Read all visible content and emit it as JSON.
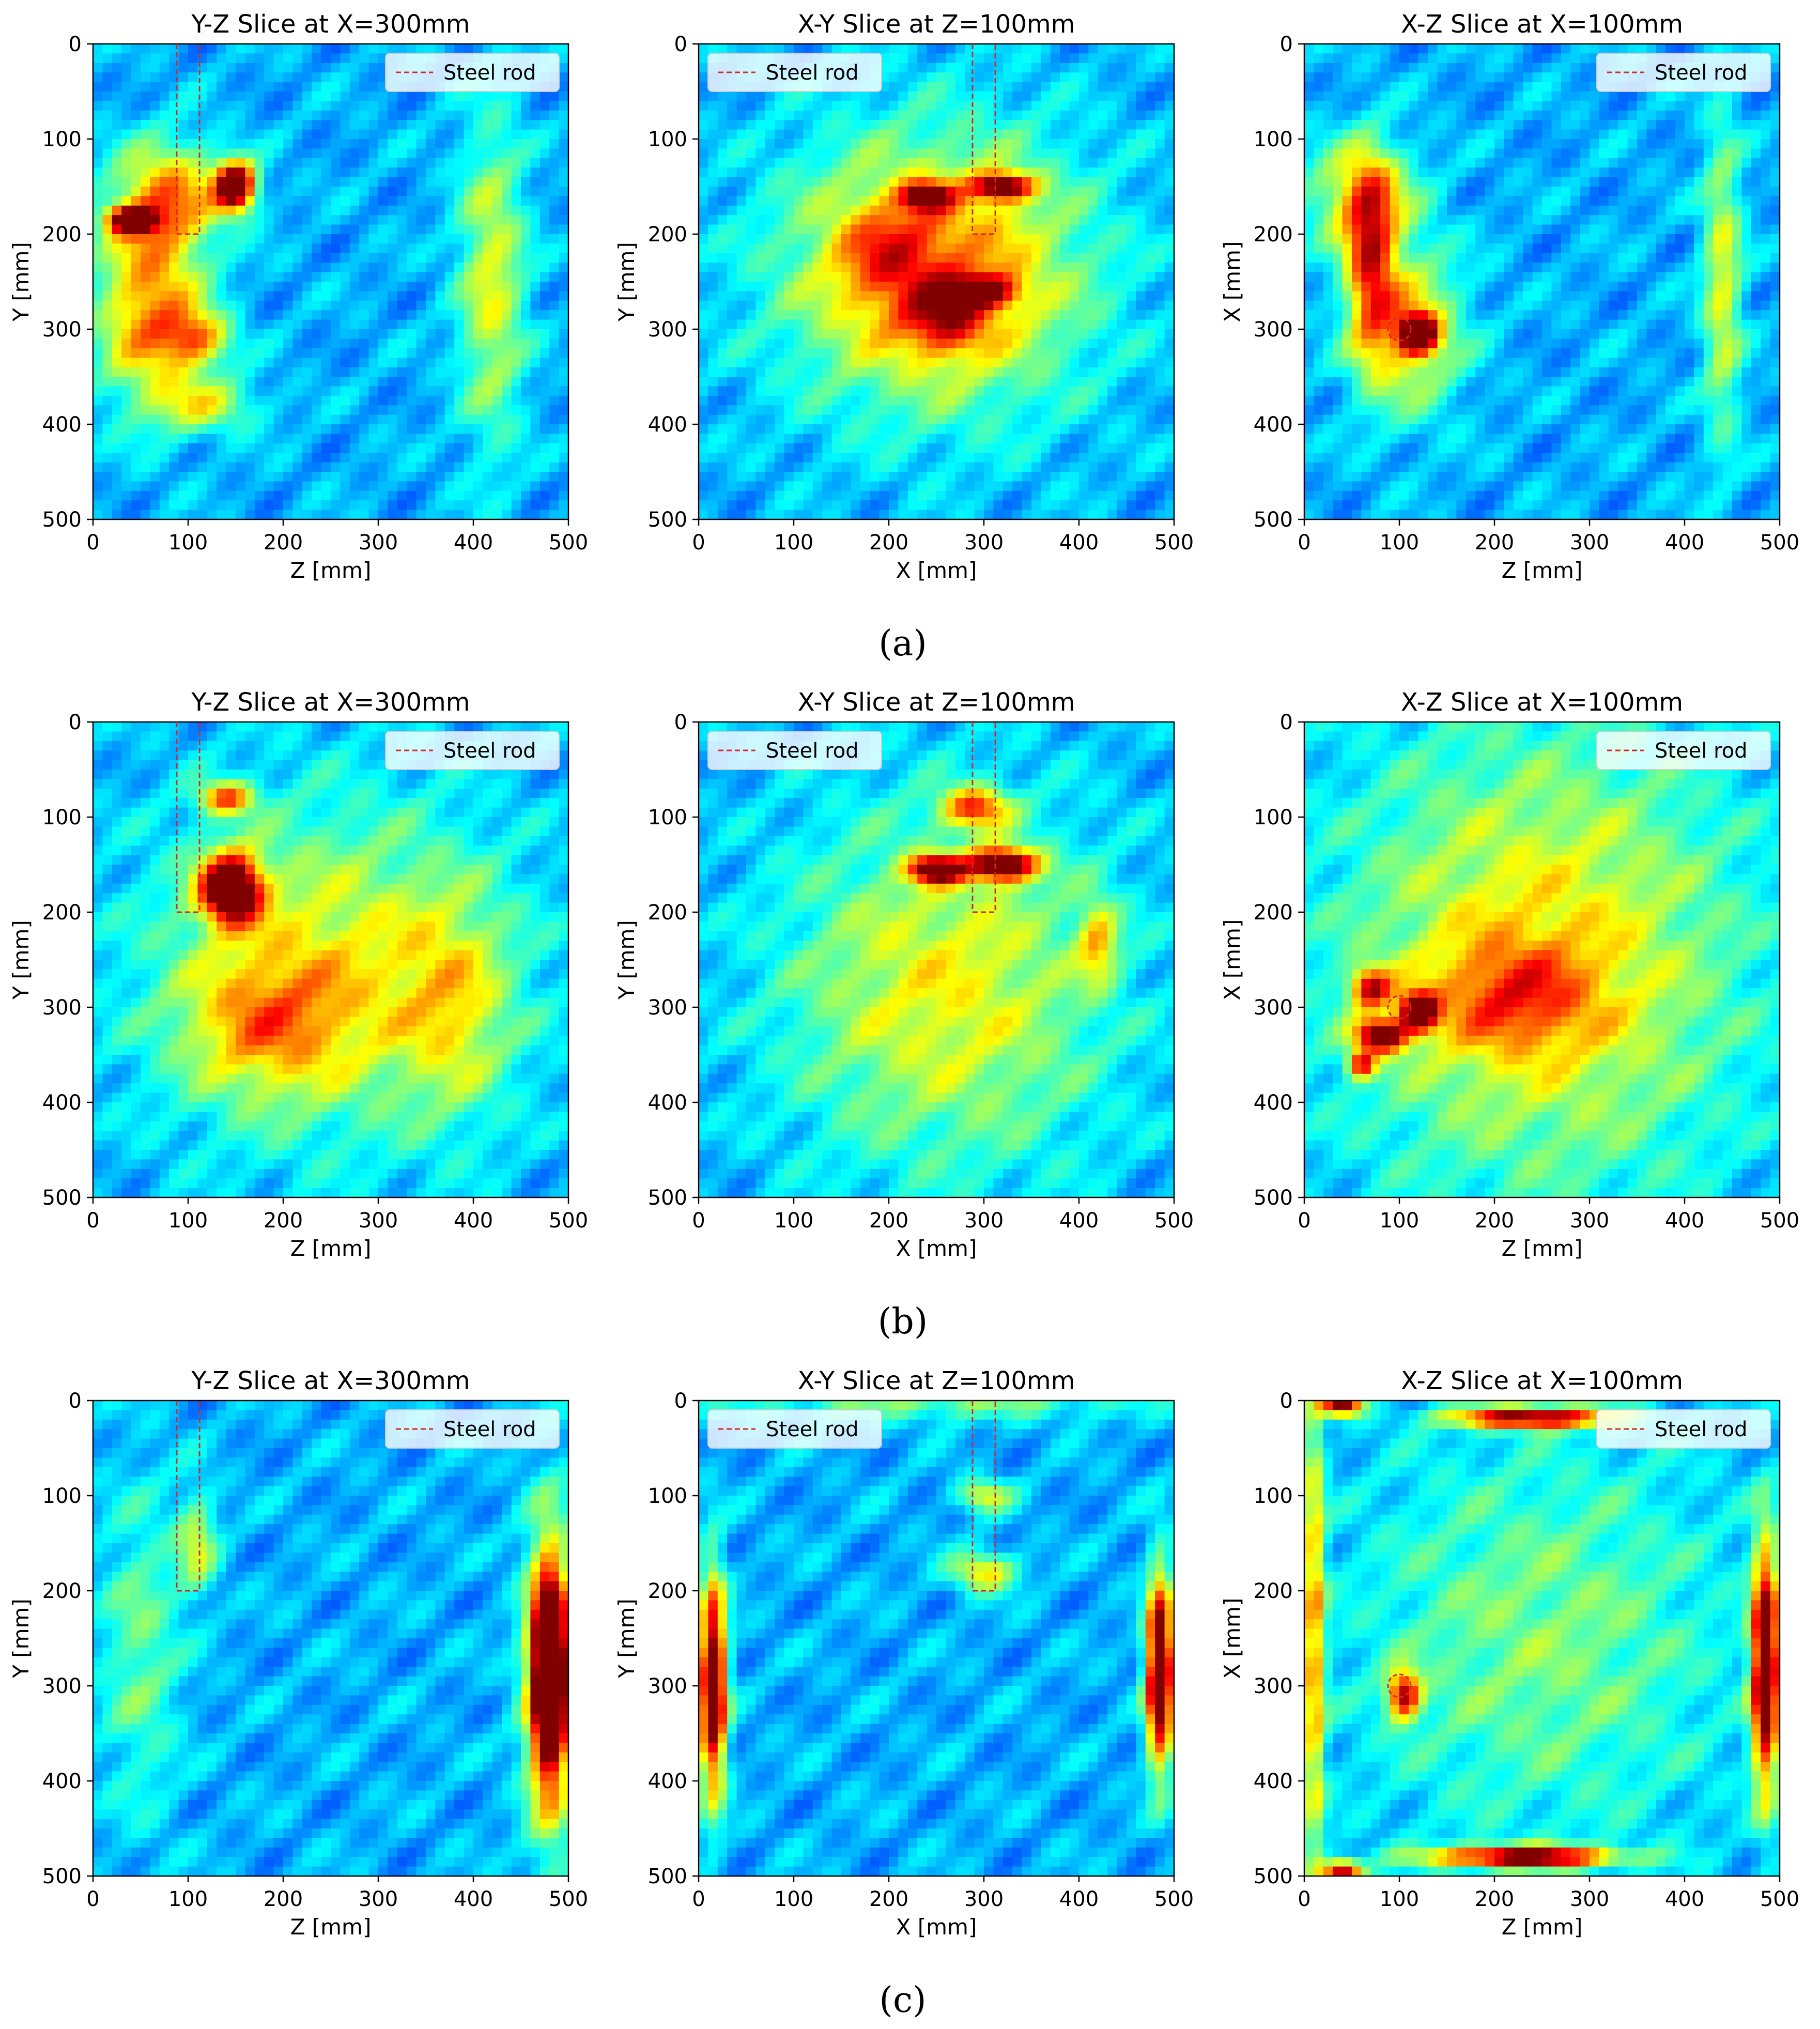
{
  "figure": {
    "captions": [
      "(a)",
      "(b)",
      "(c)"
    ],
    "colormap": "jet",
    "rod_color": "#d62728",
    "legend_label": "Steel rod"
  },
  "chart_data": [
    {
      "row": "(a)",
      "type": "heatmap",
      "title": "Y-Z Slice at X=300mm",
      "xlabel": "Z [mm]",
      "ylabel": "Y [mm]",
      "xlim": [
        0,
        500
      ],
      "ylim": [
        500,
        0
      ],
      "xticks": [
        "0",
        "100",
        "200",
        "300",
        "400",
        "500"
      ],
      "yticks": [
        "0",
        "100",
        "200",
        "300",
        "400",
        "500"
      ],
      "legend": {
        "label": "Steel rod",
        "position": "top-right"
      },
      "steel_rod": {
        "shape": "rect",
        "x": [
          88,
          112
        ],
        "y": [
          0,
          200
        ]
      },
      "hotspots": [
        {
          "x": 150,
          "y": 150,
          "sx": 15,
          "sy": 18,
          "a": 0.85
        },
        {
          "x": 40,
          "y": 185,
          "sx": 18,
          "sy": 10,
          "a": 0.65
        },
        {
          "x": 60,
          "y": 280,
          "sx": 40,
          "sy": 70,
          "a": 0.45
        },
        {
          "x": 110,
          "y": 310,
          "sx": 25,
          "sy": 20,
          "a": 0.35
        },
        {
          "x": 80,
          "y": 160,
          "sx": 40,
          "sy": 40,
          "a": 0.4
        },
        {
          "x": 420,
          "y": 250,
          "sx": 25,
          "sy": 120,
          "a": 0.3
        },
        {
          "x": 120,
          "y": 380,
          "sx": 40,
          "sy": 20,
          "a": 0.25
        }
      ]
    },
    {
      "row": "(a)",
      "type": "heatmap",
      "title": "X-Y Slice at Z=100mm",
      "xlabel": "X [mm]",
      "ylabel": "Y [mm]",
      "xlim": [
        0,
        500
      ],
      "ylim": [
        500,
        0
      ],
      "xticks": [
        "0",
        "100",
        "200",
        "300",
        "400",
        "500"
      ],
      "yticks": [
        "0",
        "100",
        "200",
        "300",
        "400",
        "500"
      ],
      "legend": {
        "label": "Steel rod",
        "position": "top-left"
      },
      "steel_rod": {
        "shape": "rect",
        "x": [
          288,
          312
        ],
        "y": [
          0,
          200
        ]
      },
      "hotspots": [
        {
          "x": 250,
          "y": 240,
          "sx": 110,
          "sy": 100,
          "a": 0.45
        },
        {
          "x": 240,
          "y": 160,
          "sx": 18,
          "sy": 10,
          "a": 0.55
        },
        {
          "x": 320,
          "y": 150,
          "sx": 22,
          "sy": 10,
          "a": 0.65
        },
        {
          "x": 300,
          "y": 260,
          "sx": 25,
          "sy": 12,
          "a": 0.45
        },
        {
          "x": 260,
          "y": 290,
          "sx": 30,
          "sy": 25,
          "a": 0.3
        },
        {
          "x": 200,
          "y": 220,
          "sx": 40,
          "sy": 40,
          "a": 0.2
        }
      ]
    },
    {
      "row": "(a)",
      "type": "heatmap",
      "title": "X-Z Slice at X=100mm",
      "xlabel": "Z [mm]",
      "ylabel": "X [mm]",
      "xlim": [
        0,
        500
      ],
      "ylim": [
        500,
        0
      ],
      "xticks": [
        "0",
        "100",
        "200",
        "300",
        "400",
        "500"
      ],
      "yticks": [
        "0",
        "100",
        "200",
        "300",
        "400",
        "500"
      ],
      "legend": {
        "label": "Steel rod",
        "position": "top-right"
      },
      "steel_rod": {
        "shape": "circle",
        "cx": 100,
        "cy": 300,
        "r": 12
      },
      "hotspots": [
        {
          "x": 120,
          "y": 305,
          "sx": 14,
          "sy": 14,
          "a": 0.75
        },
        {
          "x": 70,
          "y": 230,
          "sx": 18,
          "sy": 70,
          "a": 0.45
        },
        {
          "x": 60,
          "y": 160,
          "sx": 40,
          "sy": 40,
          "a": 0.35
        },
        {
          "x": 110,
          "y": 300,
          "sx": 40,
          "sy": 60,
          "a": 0.35
        },
        {
          "x": 440,
          "y": 250,
          "sx": 15,
          "sy": 120,
          "a": 0.3
        }
      ]
    },
    {
      "row": "(b)",
      "type": "heatmap",
      "title": "Y-Z Slice at X=300mm",
      "xlabel": "Z [mm]",
      "ylabel": "Y [mm]",
      "xlim": [
        0,
        500
      ],
      "ylim": [
        500,
        0
      ],
      "xticks": [
        "0",
        "100",
        "200",
        "300",
        "400",
        "500"
      ],
      "yticks": [
        "0",
        "100",
        "200",
        "300",
        "400",
        "500"
      ],
      "legend": {
        "label": "Steel rod",
        "position": "top-right"
      },
      "steel_rod": {
        "shape": "rect",
        "x": [
          88,
          112
        ],
        "y": [
          0,
          200
        ]
      },
      "hotspots": [
        {
          "x": 145,
          "y": 175,
          "sx": 22,
          "sy": 25,
          "a": 0.85
        },
        {
          "x": 140,
          "y": 80,
          "sx": 20,
          "sy": 12,
          "a": 0.45
        },
        {
          "x": 250,
          "y": 260,
          "sx": 130,
          "sy": 120,
          "a": 0.32
        },
        {
          "x": 180,
          "y": 320,
          "sx": 60,
          "sy": 50,
          "a": 0.25
        },
        {
          "x": 380,
          "y": 300,
          "sx": 40,
          "sy": 80,
          "a": 0.2
        }
      ]
    },
    {
      "row": "(b)",
      "type": "heatmap",
      "title": "X-Y Slice at Z=100mm",
      "xlabel": "X [mm]",
      "ylabel": "Y [mm]",
      "xlim": [
        0,
        500
      ],
      "ylim": [
        500,
        0
      ],
      "xticks": [
        "0",
        "100",
        "200",
        "300",
        "400",
        "500"
      ],
      "yticks": [
        "0",
        "100",
        "200",
        "300",
        "400",
        "500"
      ],
      "legend": {
        "label": "Steel rod",
        "position": "top-left"
      },
      "steel_rod": {
        "shape": "rect",
        "x": [
          288,
          312
        ],
        "y": [
          0,
          200
        ]
      },
      "hotspots": [
        {
          "x": 250,
          "y": 155,
          "sx": 20,
          "sy": 10,
          "a": 0.7
        },
        {
          "x": 320,
          "y": 150,
          "sx": 25,
          "sy": 12,
          "a": 0.75
        },
        {
          "x": 290,
          "y": 90,
          "sx": 25,
          "sy": 15,
          "a": 0.45
        },
        {
          "x": 260,
          "y": 280,
          "sx": 120,
          "sy": 130,
          "a": 0.32
        },
        {
          "x": 420,
          "y": 230,
          "sx": 15,
          "sy": 30,
          "a": 0.3
        }
      ]
    },
    {
      "row": "(b)",
      "type": "heatmap",
      "title": "X-Z Slice at X=100mm",
      "xlabel": "Z [mm]",
      "ylabel": "X [mm]",
      "xlim": [
        0,
        500
      ],
      "ylim": [
        500,
        0
      ],
      "xticks": [
        "0",
        "100",
        "200",
        "300",
        "400",
        "500"
      ],
      "yticks": [
        "0",
        "100",
        "200",
        "300",
        "400",
        "500"
      ],
      "legend": {
        "label": "Steel rod",
        "position": "top-right"
      },
      "steel_rod": {
        "shape": "circle",
        "cx": 100,
        "cy": 300,
        "r": 12
      },
      "hotspots": [
        {
          "x": 120,
          "y": 305,
          "sx": 14,
          "sy": 14,
          "a": 0.7
        },
        {
          "x": 80,
          "y": 330,
          "sx": 18,
          "sy": 12,
          "a": 0.7
        },
        {
          "x": 70,
          "y": 280,
          "sx": 15,
          "sy": 15,
          "a": 0.5
        },
        {
          "x": 60,
          "y": 360,
          "sx": 10,
          "sy": 10,
          "a": 0.5
        },
        {
          "x": 250,
          "y": 250,
          "sx": 150,
          "sy": 170,
          "a": 0.35
        },
        {
          "x": 220,
          "y": 290,
          "sx": 60,
          "sy": 40,
          "a": 0.25
        }
      ]
    },
    {
      "row": "(c)",
      "type": "heatmap",
      "title": "Y-Z Slice at X=300mm",
      "xlabel": "Z [mm]",
      "ylabel": "Y [mm]",
      "xlim": [
        0,
        500
      ],
      "ylim": [
        500,
        0
      ],
      "xticks": [
        "0",
        "100",
        "200",
        "300",
        "400",
        "500"
      ],
      "yticks": [
        "0",
        "100",
        "200",
        "300",
        "400",
        "500"
      ],
      "legend": {
        "label": "Steel rod",
        "position": "top-right"
      },
      "steel_rod": {
        "shape": "rect",
        "x": [
          88,
          112
        ],
        "y": [
          0,
          200
        ]
      },
      "hotspots": [
        {
          "x": 480,
          "y": 285,
          "sx": 12,
          "sy": 70,
          "a": 0.95
        },
        {
          "x": 480,
          "y": 300,
          "sx": 20,
          "sy": 130,
          "a": 0.4
        },
        {
          "x": 110,
          "y": 150,
          "sx": 15,
          "sy": 40,
          "a": 0.25
        },
        {
          "x": 50,
          "y": 260,
          "sx": 30,
          "sy": 120,
          "a": 0.18
        }
      ]
    },
    {
      "row": "(c)",
      "type": "heatmap",
      "title": "X-Y Slice at Z=100mm",
      "xlabel": "X [mm]",
      "ylabel": "Y [mm]",
      "xlim": [
        0,
        500
      ],
      "ylim": [
        500,
        0
      ],
      "xticks": [
        "0",
        "100",
        "200",
        "300",
        "400",
        "500"
      ],
      "yticks": [
        "0",
        "100",
        "200",
        "300",
        "400",
        "500"
      ],
      "legend": {
        "label": "Steel rod",
        "position": "top-left"
      },
      "steel_rod": {
        "shape": "rect",
        "x": [
          288,
          312
        ],
        "y": [
          0,
          200
        ]
      },
      "hotspots": [
        {
          "x": 15,
          "y": 300,
          "sx": 10,
          "sy": 80,
          "a": 0.85
        },
        {
          "x": 485,
          "y": 285,
          "sx": 10,
          "sy": 70,
          "a": 0.9
        },
        {
          "x": 300,
          "y": 180,
          "sx": 25,
          "sy": 15,
          "a": 0.35
        },
        {
          "x": 300,
          "y": 100,
          "sx": 20,
          "sy": 12,
          "a": 0.3
        },
        {
          "x": 250,
          "y": 0,
          "sx": 150,
          "sy": 15,
          "a": 0.2
        }
      ]
    },
    {
      "row": "(c)",
      "type": "heatmap",
      "title": "X-Z Slice at X=100mm",
      "xlabel": "Z [mm]",
      "ylabel": "X [mm]",
      "xlim": [
        0,
        500
      ],
      "ylim": [
        500,
        0
      ],
      "xticks": [
        "0",
        "100",
        "200",
        "300",
        "400",
        "500"
      ],
      "yticks": [
        "0",
        "100",
        "200",
        "300",
        "400",
        "500"
      ],
      "legend": {
        "label": "Steel rod",
        "position": "top-right"
      },
      "steel_rod": {
        "shape": "circle",
        "cx": 100,
        "cy": 300,
        "r": 12
      },
      "hotspots": [
        {
          "x": 485,
          "y": 280,
          "sx": 10,
          "sy": 90,
          "a": 0.85
        },
        {
          "x": 240,
          "y": 18,
          "sx": 60,
          "sy": 8,
          "a": 0.7
        },
        {
          "x": 230,
          "y": 480,
          "sx": 70,
          "sy": 8,
          "a": 0.75
        },
        {
          "x": 40,
          "y": 5,
          "sx": 15,
          "sy": 8,
          "a": 0.7
        },
        {
          "x": 40,
          "y": 495,
          "sx": 15,
          "sy": 8,
          "a": 0.7
        },
        {
          "x": 105,
          "y": 310,
          "sx": 12,
          "sy": 18,
          "a": 0.6
        },
        {
          "x": 10,
          "y": 250,
          "sx": 8,
          "sy": 200,
          "a": 0.4
        },
        {
          "x": 250,
          "y": 250,
          "sx": 140,
          "sy": 150,
          "a": 0.2
        }
      ]
    }
  ]
}
